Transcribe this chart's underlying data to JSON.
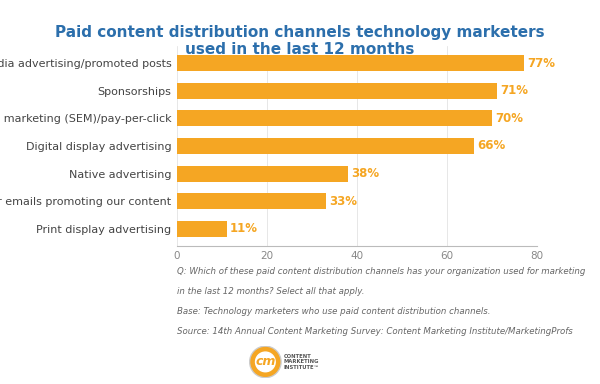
{
  "title_line1": "Paid content distribution channels technology marketers",
  "title_line2": "used in the last 12 months",
  "categories": [
    "Print display advertising",
    "Partner emails promoting our content",
    "Native advertising",
    "Digital display advertising",
    "Search engine marketing (SEM)/pay-per-click",
    "Sponsorships",
    "Social media advertising/promoted posts"
  ],
  "values": [
    11,
    33,
    38,
    66,
    70,
    71,
    77
  ],
  "bar_color": "#F5A623",
  "value_color": "#F5A623",
  "title_color": "#2C6FAC",
  "background_color": "#FFFFFF",
  "xlim": [
    0,
    80
  ],
  "xticks": [
    0,
    20,
    40,
    60,
    80
  ],
  "footnote_line1": "Q: Which of these paid content distribution channels has your organization used for marketing",
  "footnote_line2": "in the last 12 months? Select all that apply.",
  "footnote_line3": "Base: Technology marketers who use paid content distribution channels.",
  "footnote_line4": "Source: 14th Annual Content Marketing Survey: Content Marketing Institute/MarketingProfs",
  "label_fontsize": 8,
  "title_fontsize": 11,
  "value_fontsize": 8.5,
  "footnote_fontsize": 6.2
}
